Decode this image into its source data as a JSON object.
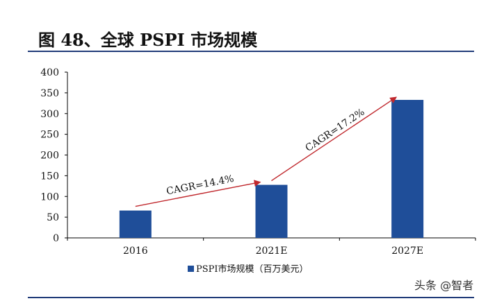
{
  "header": {
    "title": "图 48、全球 PSPI 市场规模"
  },
  "watermark": "头条 @智者",
  "chart_data": {
    "type": "bar",
    "categories": [
      "2016",
      "2021E",
      "2027E"
    ],
    "series": [
      {
        "name": "PSPI市场规模（百万美元）",
        "values": [
          66,
          128,
          333
        ],
        "color": "#1f4e99"
      }
    ],
    "ylim": [
      0,
      400
    ],
    "yticks": [
      0,
      50,
      100,
      150,
      200,
      250,
      300,
      350,
      400
    ],
    "grid": false,
    "legend": "bottom",
    "annotations": [
      {
        "text": "CAGR=14.4%",
        "from": "2016",
        "to": "2021E",
        "color": "#c0282d"
      },
      {
        "text": "CAGR=17.2%",
        "from": "2021E",
        "to": "2027E",
        "color": "#c0282d"
      }
    ]
  }
}
